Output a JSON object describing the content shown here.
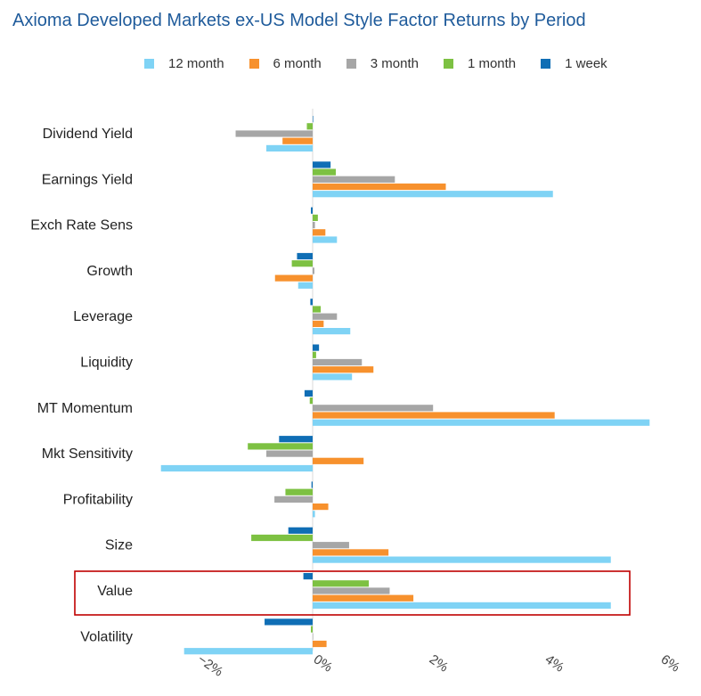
{
  "chart_data": {
    "type": "bar",
    "orientation": "horizontal",
    "title": "Axioma Developed Markets ex-US Model Style Factor Returns by Period",
    "xlabel": "",
    "ylabel": "",
    "xlim": [
      -3.0,
      6.2
    ],
    "xticks": [
      -2,
      0,
      2,
      4,
      6
    ],
    "xtick_labels": [
      "−2%",
      "0%",
      "2%",
      "4%",
      "6%"
    ],
    "legend_position": "top",
    "grid": false,
    "categories": [
      "Dividend Yield",
      "Earnings Yield",
      "Exch Rate Sens",
      "Growth",
      "Leverage",
      "Liquidity",
      "MT Momentum",
      "Mkt Sensitivity",
      "Profitability",
      "Size",
      "Value",
      "Volatility"
    ],
    "highlighted_category": "Value",
    "series": [
      {
        "name": "12 month",
        "color": "#7fd3f5",
        "values": [
          -0.8,
          4.15,
          0.42,
          -0.25,
          0.65,
          0.68,
          5.82,
          -2.62,
          0.04,
          5.15,
          5.15,
          -2.22
        ]
      },
      {
        "name": "6 month",
        "color": "#f7912d",
        "values": [
          -0.52,
          2.3,
          0.22,
          -0.65,
          0.19,
          1.05,
          4.18,
          0.88,
          0.27,
          1.31,
          1.74,
          0.24
        ]
      },
      {
        "name": "3 month",
        "color": "#a6a6a6",
        "values": [
          -1.33,
          1.42,
          0.04,
          0.03,
          0.42,
          0.85,
          2.08,
          -0.8,
          -0.66,
          0.63,
          1.33,
          0.0
        ]
      },
      {
        "name": "1 month",
        "color": "#7dc142",
        "values": [
          -0.1,
          0.4,
          0.09,
          -0.36,
          0.14,
          0.06,
          -0.05,
          -1.12,
          -0.47,
          -1.06,
          0.97,
          -0.03
        ]
      },
      {
        "name": "1 week",
        "color": "#0f6eb5",
        "values": [
          0.0,
          0.31,
          -0.03,
          -0.27,
          -0.04,
          0.11,
          -0.14,
          -0.58,
          -0.02,
          -0.42,
          -0.16,
          -0.83
        ]
      }
    ]
  }
}
